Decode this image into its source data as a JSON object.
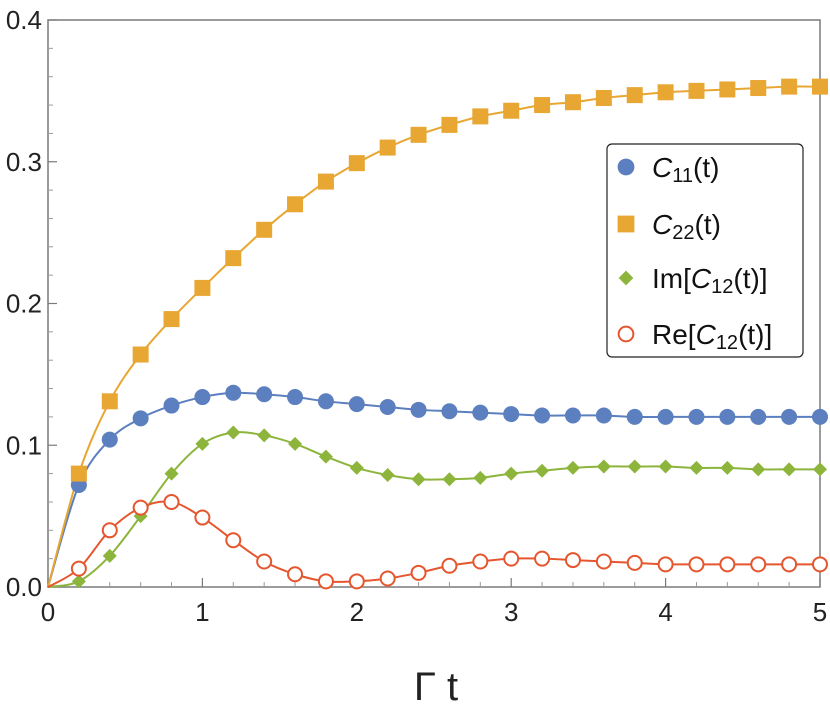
{
  "chart_data": {
    "type": "line",
    "xlabel": "Γ t",
    "ylabel": "",
    "xlim": [
      0,
      5
    ],
    "ylim": [
      0,
      0.4
    ],
    "grid": false,
    "legend_position": "right",
    "x_ticks": [
      "0",
      "1",
      "2",
      "3",
      "4",
      "5"
    ],
    "y_ticks": [
      "0.0",
      "0.1",
      "0.2",
      "0.3",
      "0.4"
    ],
    "colors": {
      "C11": "#5b7fbf",
      "C22": "#e8a632",
      "ImC12": "#8db53c",
      "ReC12": "#e5562f"
    },
    "series": [
      {
        "key": "C11",
        "legend_main": "C",
        "legend_sub": "11",
        "legend_suffix": "(t)",
        "legend_prefix": "",
        "marker": "circle",
        "x": [
          0.2,
          0.4,
          0.6,
          0.8,
          1.0,
          1.2,
          1.4,
          1.6,
          1.8,
          2.0,
          2.2,
          2.4,
          2.6,
          2.8,
          3.0,
          3.2,
          3.4,
          3.6,
          3.8,
          4.0,
          4.2,
          4.4,
          4.6,
          4.8,
          5.0
        ],
        "values": [
          0.072,
          0.104,
          0.119,
          0.128,
          0.134,
          0.137,
          0.136,
          0.134,
          0.131,
          0.129,
          0.127,
          0.125,
          0.124,
          0.123,
          0.122,
          0.121,
          0.121,
          0.121,
          0.12,
          0.12,
          0.12,
          0.12,
          0.12,
          0.12,
          0.12
        ]
      },
      {
        "key": "C22",
        "legend_main": "C",
        "legend_sub": "22",
        "legend_suffix": "(t)",
        "legend_prefix": "",
        "marker": "square",
        "x": [
          0.2,
          0.4,
          0.6,
          0.8,
          1.0,
          1.2,
          1.4,
          1.6,
          1.8,
          2.0,
          2.2,
          2.4,
          2.6,
          2.8,
          3.0,
          3.2,
          3.4,
          3.6,
          3.8,
          4.0,
          4.2,
          4.4,
          4.6,
          4.8,
          5.0
        ],
        "values": [
          0.08,
          0.131,
          0.164,
          0.189,
          0.211,
          0.232,
          0.252,
          0.27,
          0.286,
          0.299,
          0.31,
          0.319,
          0.326,
          0.332,
          0.336,
          0.34,
          0.342,
          0.345,
          0.347,
          0.349,
          0.35,
          0.351,
          0.352,
          0.353,
          0.353
        ]
      },
      {
        "key": "ImC12",
        "legend_main": "C",
        "legend_sub": "12",
        "legend_suffix": "(t)]",
        "legend_prefix": "Im[",
        "marker": "diamond",
        "x": [
          0.2,
          0.4,
          0.6,
          0.8,
          1.0,
          1.2,
          1.4,
          1.6,
          1.8,
          2.0,
          2.2,
          2.4,
          2.6,
          2.8,
          3.0,
          3.2,
          3.4,
          3.6,
          3.8,
          4.0,
          4.2,
          4.4,
          4.6,
          4.8,
          5.0
        ],
        "values": [
          0.004,
          0.022,
          0.05,
          0.08,
          0.101,
          0.109,
          0.107,
          0.101,
          0.092,
          0.084,
          0.079,
          0.076,
          0.076,
          0.077,
          0.08,
          0.082,
          0.084,
          0.085,
          0.085,
          0.085,
          0.084,
          0.084,
          0.083,
          0.083,
          0.083
        ]
      },
      {
        "key": "ReC12",
        "legend_main": "C",
        "legend_sub": "12",
        "legend_suffix": "(t)]",
        "legend_prefix": "Re[",
        "marker": "open-circle",
        "x": [
          0.2,
          0.4,
          0.6,
          0.8,
          1.0,
          1.2,
          1.4,
          1.6,
          1.8,
          2.0,
          2.2,
          2.4,
          2.6,
          2.8,
          3.0,
          3.2,
          3.4,
          3.6,
          3.8,
          4.0,
          4.2,
          4.4,
          4.6,
          4.8,
          5.0
        ],
        "values": [
          0.013,
          0.04,
          0.056,
          0.06,
          0.049,
          0.033,
          0.018,
          0.009,
          0.004,
          0.004,
          0.006,
          0.01,
          0.015,
          0.018,
          0.02,
          0.02,
          0.019,
          0.018,
          0.017,
          0.016,
          0.016,
          0.016,
          0.016,
          0.016,
          0.016
        ]
      }
    ]
  }
}
